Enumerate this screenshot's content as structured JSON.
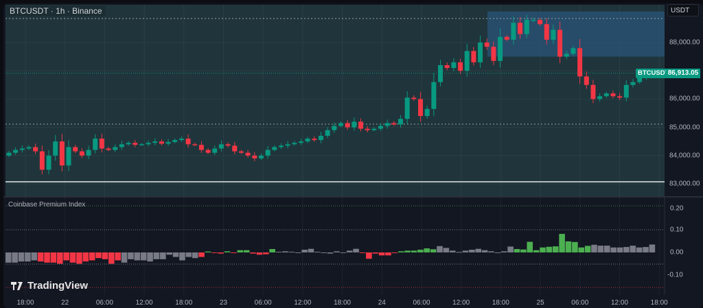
{
  "header": {
    "title": "BTCUSDT · 1h · Binance",
    "currency": "USDT"
  },
  "price_axis": {
    "labels": [
      {
        "v": 88000,
        "t": "88,000.00"
      },
      {
        "v": 86000,
        "t": "86,000.00"
      },
      {
        "v": 85000,
        "t": "85,000.00"
      },
      {
        "v": 84000,
        "t": "84,000.00"
      },
      {
        "v": 83000,
        "t": "83,000.00"
      }
    ]
  },
  "current": {
    "symbol": "BTCUSDT",
    "price": "86,913.05",
    "value": 86913.05
  },
  "indicator": {
    "name": "Coinbase Premium Index",
    "labels": [
      {
        "v": 0.2,
        "t": "0.20"
      },
      {
        "v": 0.1,
        "t": "0.10"
      },
      {
        "v": 0,
        "t": "0.00"
      },
      {
        "v": -0.1,
        "t": "-0.10"
      }
    ]
  },
  "time_axis": [
    "18:00",
    "22",
    "06:00",
    "12:00",
    "18:00",
    "23",
    "06:00",
    "12:00",
    "18:00",
    "24",
    "06:00",
    "12:00",
    "18:00",
    "25",
    "06:00",
    "12:00",
    "18:00"
  ],
  "branding": "TradingView",
  "colors": {
    "up": "#089981",
    "down": "#f23645",
    "hist_up": "#4caf50",
    "hist_down": "#f23645",
    "hist_neutral": "#787b86",
    "zone": "#2a5479"
  },
  "chart_data": {
    "type": "candlestick",
    "timeframe": "1h",
    "ylim": [
      82600,
      89400
    ],
    "first_open": 84000,
    "closes": [
      84100,
      84200,
      84250,
      84300,
      84150,
      83500,
      84000,
      84500,
      83650,
      84300,
      84150,
      84000,
      84200,
      84600,
      84250,
      84200,
      84300,
      84400,
      84450,
      84380,
      84400,
      84450,
      84500,
      84420,
      84480,
      84550,
      84600,
      84400,
      84380,
      84200,
      84100,
      84250,
      84400,
      84350,
      84150,
      84100,
      84000,
      83900,
      84000,
      84200,
      84300,
      84350,
      84400,
      84450,
      84500,
      84600,
      84550,
      84700,
      84900,
      85050,
      85150,
      85000,
      85200,
      84950,
      84900,
      84950,
      85050,
      85150,
      85100,
      85300,
      86050,
      86000,
      85400,
      85650,
      86600,
      87200,
      87100,
      87300,
      87000,
      87700,
      87300,
      88000,
      87850,
      87350,
      88200,
      88100,
      88700,
      88300,
      88800,
      88800,
      88650,
      88100,
      88450,
      87500,
      87600,
      87800,
      86800,
      86500,
      86000,
      86100,
      86200,
      86100,
      86050,
      86500,
      86600,
      86750,
      86850,
      86913
    ],
    "key_levels": [
      88900,
      86913.05,
      85100,
      83100
    ],
    "zone": [
      87500,
      89100
    ],
    "indicator": {
      "name": "Coinbase Premium Index",
      "ylim": [
        -0.15,
        0.22
      ],
      "values": [
        -0.045,
        -0.045,
        -0.04,
        -0.04,
        -0.035,
        -0.04,
        -0.045,
        -0.045,
        -0.05,
        -0.035,
        -0.045,
        -0.05,
        -0.04,
        -0.035,
        -0.025,
        -0.03,
        -0.05,
        -0.035,
        -0.045,
        -0.03,
        -0.035,
        -0.035,
        -0.04,
        -0.03,
        -0.03,
        -0.01,
        -0.02,
        -0.035,
        -0.02,
        -0.025,
        -0.02,
        0.004,
        -0.002,
        -0.005,
        0.005,
        -0.002,
        0.01,
        0.01,
        -0.005,
        -0.01,
        -0.008,
        0.015,
        0.003,
        0.005,
        0.003,
        -0.003,
        0.012,
        0.016,
        0.003,
        -0.002,
        -0.005,
        0.005,
        -0.003,
        0.008,
        0.016,
        -0.002,
        -0.028,
        -0.005,
        -0.013,
        -0.013,
        -0.003,
        0.005,
        0.008,
        0.008,
        0.012,
        0.018,
        0.014,
        0.028,
        0.02,
        0.008,
        0.002,
        0.008,
        0.012,
        0.016,
        0.01,
        0.005,
        -0.003,
        0.005,
        0.026,
        0.015,
        0.013,
        0.047,
        0.01,
        0.022,
        0.025,
        0.027,
        0.082,
        0.049,
        0.046,
        0.022,
        0.029,
        0.034,
        0.03,
        0.03,
        0.022,
        0.022,
        0.024,
        0.03,
        0.022,
        0.024,
        0.035
      ],
      "colors": "nnnnnrrrrrrrrrrrrrnnnnnnnnnnnnrgrrgrggrrrgnnnnnnnnnnnnnrrrrrrggggggnnnnnnnnnnnnggggggggggggnnnnnnnnnn"
    }
  }
}
